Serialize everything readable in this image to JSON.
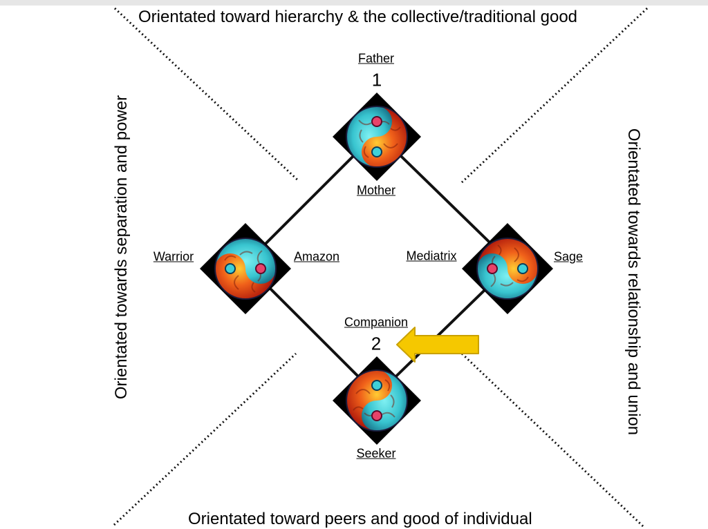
{
  "axes": {
    "top": "Orientated toward hierarchy & the collective/traditional good",
    "bottom": "Orientated toward peers and good of individual",
    "left": "Orientated towards separation and power",
    "right": "Orientated towards relationship and union"
  },
  "nodes": {
    "top_above": "Father",
    "top_number": "1",
    "top_below": "Mother",
    "left_outer": "Warrior",
    "left_inner": "Amazon",
    "right_inner": "Mediatrix",
    "right_outer": "Sage",
    "bottom_above": "Companion",
    "bottom_number": "2",
    "bottom_below": "Seeker"
  },
  "icons": {
    "symbol": "yin-yang-icon",
    "arrow": "arrow-left-icon"
  },
  "colors": {
    "fire": "#e8431a",
    "water": "#3fd0d8",
    "arrow_fill": "#f5c800",
    "arrow_stroke": "#c9a100"
  }
}
